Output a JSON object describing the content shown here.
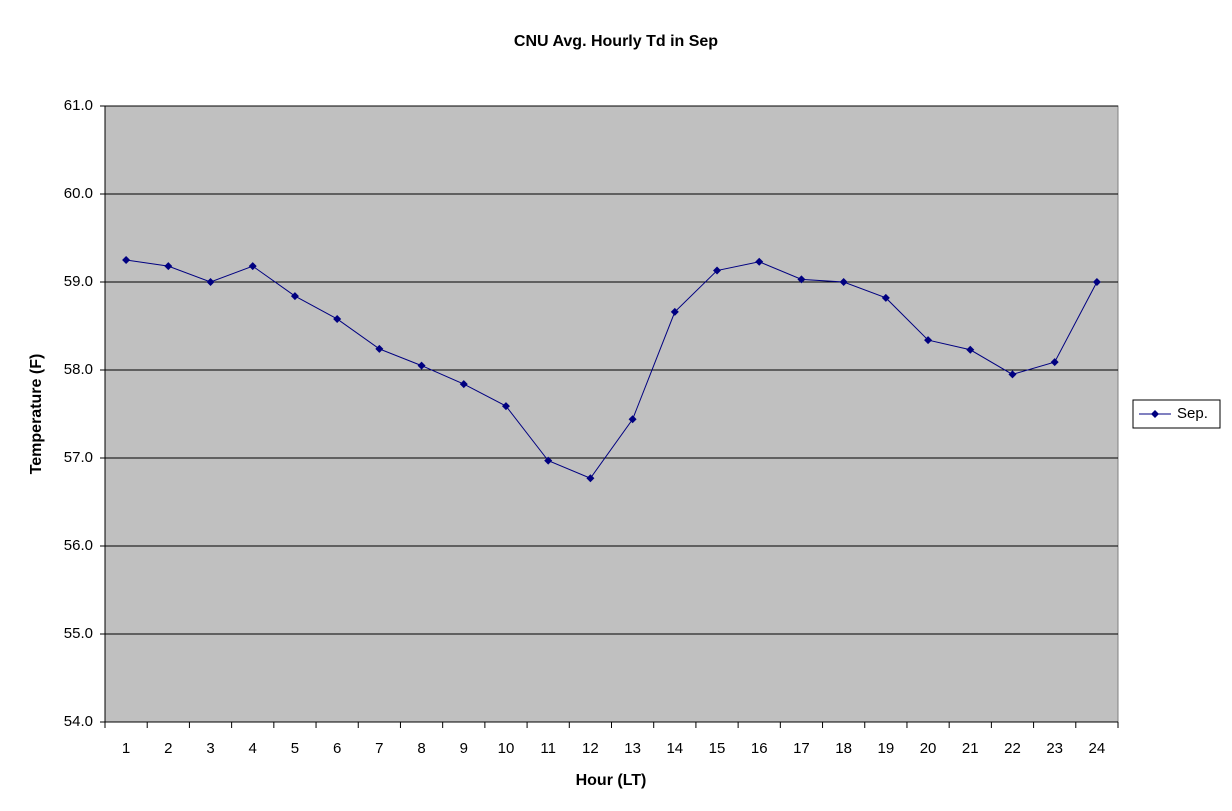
{
  "chart_data": {
    "type": "line",
    "title": "CNU Avg. Hourly Td in Sep",
    "x_label": "Hour (LT)",
    "y_label": "Temperature (F)",
    "categories": [
      "1",
      "2",
      "3",
      "4",
      "5",
      "6",
      "7",
      "8",
      "9",
      "10",
      "11",
      "12",
      "13",
      "14",
      "15",
      "16",
      "17",
      "18",
      "19",
      "20",
      "21",
      "22",
      "23",
      "24"
    ],
    "series": [
      {
        "name": "Sep.",
        "color": "#000080",
        "values": [
          59.25,
          59.18,
          59.0,
          59.18,
          58.84,
          58.58,
          58.24,
          58.05,
          57.84,
          57.59,
          56.97,
          56.77,
          57.44,
          58.66,
          59.13,
          59.23,
          59.03,
          59.0,
          58.82,
          58.34,
          58.23,
          57.95,
          58.09,
          59.0
        ]
      }
    ],
    "ylim": [
      54,
      61
    ],
    "yticks": [
      {
        "value": 54,
        "label": "54.0"
      },
      {
        "value": 55,
        "label": "55.0"
      },
      {
        "value": 56,
        "label": "56.0"
      },
      {
        "value": 57,
        "label": "57.0"
      },
      {
        "value": 58,
        "label": "58.0"
      },
      {
        "value": 59,
        "label": "59.0"
      },
      {
        "value": 60,
        "label": "60.0"
      },
      {
        "value": 61,
        "label": "61.0"
      }
    ],
    "grid": true,
    "legend": "right"
  }
}
